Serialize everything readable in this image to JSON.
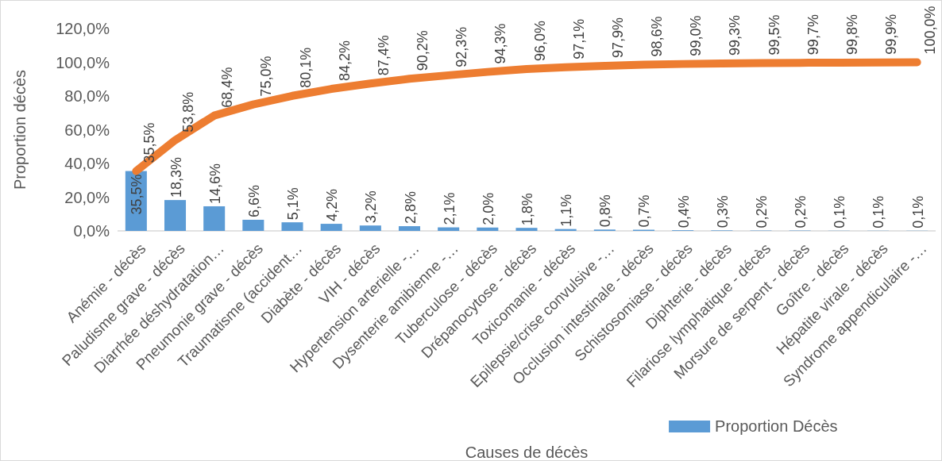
{
  "chart_data": {
    "type": "bar",
    "ylabel": "Proportion décès",
    "xlabel": "Causes de décès",
    "categories": [
      "Anémie - décès",
      "Paludisme grave - décès",
      "Diarrhée déshydratation…",
      "Pneumonie grave - décès",
      "Traumatisme (accident…",
      "Diabète - décès",
      "VIH - décès",
      "Hypertension arterielle -…",
      "Dysenterie amibienne -…",
      "Tuberculose - décès",
      "Drépanocytose - décès",
      "Toxicomanie - décès",
      "Epilepsie/crise convulsive -…",
      "Occlusion intestinale - décès",
      "Schistosomiase - décès",
      "Diphterie - décès",
      "Filariose lymphatique - décès",
      "Morsure de serpent - décès",
      "Goître - décès",
      "Hépatite virale - décès",
      "Syndrome appendiculaire -…"
    ],
    "series": [
      {
        "name": "Proportion Décès",
        "color": "#5b9bd5",
        "values": [
          35.5,
          18.3,
          14.6,
          6.6,
          5.1,
          4.2,
          3.2,
          2.8,
          2.1,
          2.0,
          1.8,
          1.1,
          0.8,
          0.7,
          0.4,
          0.3,
          0.2,
          0.2,
          0.1,
          0.1,
          0.1
        ],
        "value_labels": [
          "35,5%",
          "18,3%",
          "14,6%",
          "6,6%",
          "5,1%",
          "4,2%",
          "3,2%",
          "2,8%",
          "2,1%",
          "2,0%",
          "1,8%",
          "1,1%",
          "0,8%",
          "0,7%",
          "0,4%",
          "0,3%",
          "0,2%",
          "0,2%",
          "0,1%",
          "0,1%",
          "0,1%"
        ]
      },
      {
        "type": "line",
        "color": "#ed7d31",
        "values": [
          35.5,
          53.8,
          68.4,
          75.0,
          80.1,
          84.2,
          87.4,
          90.2,
          92.3,
          94.3,
          96.0,
          97.1,
          97.9,
          98.6,
          99.0,
          99.3,
          99.5,
          99.7,
          99.8,
          99.9,
          100.0
        ],
        "value_labels": [
          "35,5%",
          "53,8%",
          "68,4%",
          "75,0%",
          "80,1%",
          "84,2%",
          "87,4%",
          "90,2%",
          "92,3%",
          "94,3%",
          "96,0%",
          "97,1%",
          "97,9%",
          "98,6%",
          "99,0%",
          "99,3%",
          "99,5%",
          "99,7%",
          "99,8%",
          "99,9%",
          "100,0%"
        ]
      }
    ],
    "ylim": [
      0,
      120
    ],
    "yticks": [
      {
        "value": 0,
        "label": "0,0%"
      },
      {
        "value": 20,
        "label": "20,0%"
      },
      {
        "value": 40,
        "label": "40,0%"
      },
      {
        "value": 60,
        "label": "60,0%"
      },
      {
        "value": 80,
        "label": "80,0%"
      },
      {
        "value": 100,
        "label": "100,0%"
      },
      {
        "value": 120,
        "label": "120,0%"
      }
    ],
    "legend": "bottom",
    "marker": "none",
    "line_style": "solid"
  }
}
